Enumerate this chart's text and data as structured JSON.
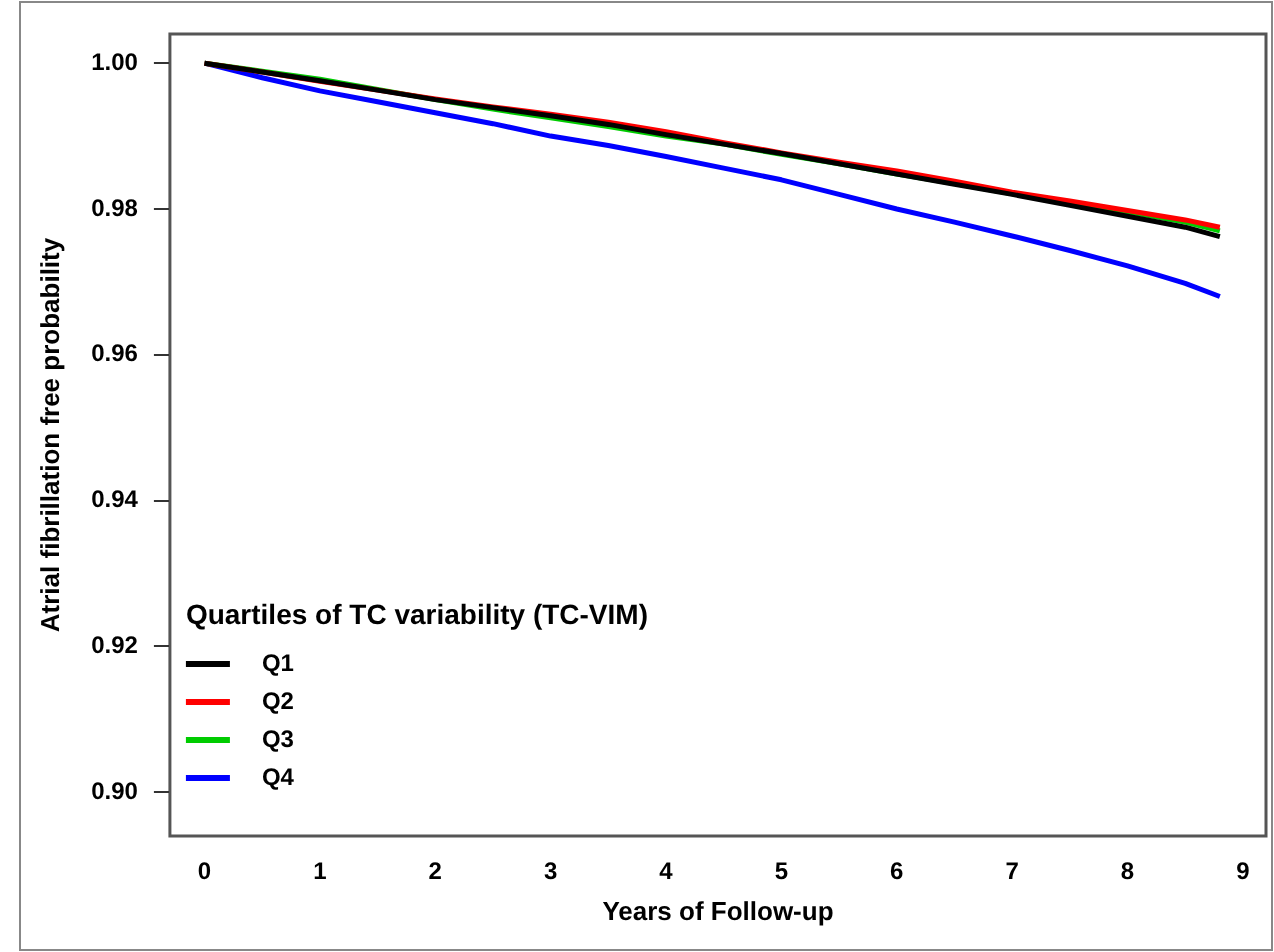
{
  "chart_data": {
    "type": "line",
    "xlabel": "Years of Follow-up",
    "ylabel": "Atrial fibrillation free probability",
    "legend_title": "Quartiles of TC variability (TC-VIM)",
    "legend": "bottom left",
    "grid": false,
    "marker": "none",
    "line_style": "solid",
    "x": [
      0,
      0.5,
      1,
      1.5,
      2,
      2.5,
      3,
      3.5,
      4,
      4.5,
      5,
      5.5,
      6,
      6.5,
      7,
      7.5,
      8,
      8.5,
      8.8
    ],
    "xlim": [
      -0.3,
      9.2
    ],
    "xticks": [
      0,
      1,
      2,
      3,
      4,
      5,
      6,
      7,
      8,
      9
    ],
    "ylim": [
      0.894,
      1.004
    ],
    "yticks": [
      {
        "value": 0.9,
        "label": "0.90"
      },
      {
        "value": 0.92,
        "label": "0.92"
      },
      {
        "value": 0.94,
        "label": "0.94"
      },
      {
        "value": 0.96,
        "label": "0.96"
      },
      {
        "value": 0.98,
        "label": "0.98"
      },
      {
        "value": 1.0,
        "label": "1.00"
      }
    ],
    "series": [
      {
        "name": "Q1",
        "color": "#000000",
        "values": [
          1.0,
          0.9988,
          0.9976,
          0.9963,
          0.995,
          0.9939,
          0.9928,
          0.9916,
          0.9902,
          0.9889,
          0.9876,
          0.9862,
          0.9848,
          0.9834,
          0.982,
          0.9805,
          0.979,
          0.9775,
          0.9762
        ]
      },
      {
        "name": "Q2",
        "color": "#ff0000",
        "values": [
          1.0,
          0.9988,
          0.9975,
          0.9963,
          0.9951,
          0.994,
          0.993,
          0.9919,
          0.9906,
          0.9891,
          0.9877,
          0.9864,
          0.9852,
          0.9838,
          0.9823,
          0.9811,
          0.9798,
          0.9785,
          0.9775
        ]
      },
      {
        "name": "Q3",
        "color": "#00cc00",
        "values": [
          1.0,
          0.9989,
          0.9978,
          0.9964,
          0.995,
          0.9937,
          0.9925,
          0.9913,
          0.99,
          0.9889,
          0.9875,
          0.9862,
          0.9848,
          0.9835,
          0.9821,
          0.9808,
          0.9796,
          0.9782,
          0.977
        ]
      },
      {
        "name": "Q4",
        "color": "#0000ff",
        "values": [
          1.0,
          0.998,
          0.9962,
          0.9947,
          0.9932,
          0.9917,
          0.99,
          0.9887,
          0.9872,
          0.9856,
          0.984,
          0.982,
          0.98,
          0.9782,
          0.9763,
          0.9743,
          0.9722,
          0.9698,
          0.968
        ]
      }
    ]
  }
}
